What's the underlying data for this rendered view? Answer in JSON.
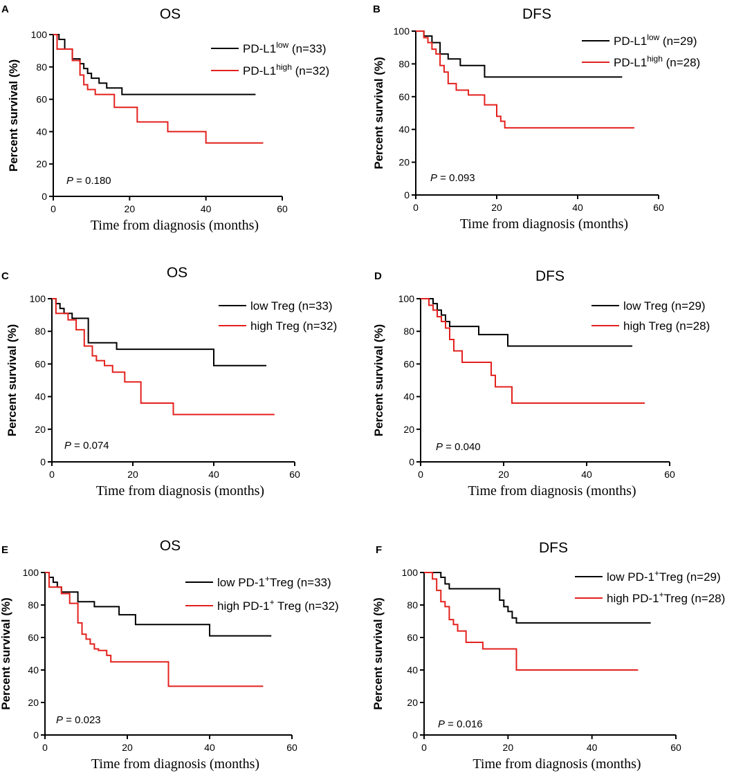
{
  "chart_data": [
    {
      "panel": "A",
      "type": "line",
      "title": "OS",
      "xlabel": "Time from diagnosis (months)",
      "ylabel": "Percent survival (%)",
      "xlim": [
        0,
        60
      ],
      "ylim": [
        0,
        100
      ],
      "xticks": [
        "0",
        "20",
        "40",
        "60"
      ],
      "yticks": [
        "0",
        "20",
        "40",
        "60",
        "80",
        "100"
      ],
      "p_label": "P",
      "p_value": "= 0.180",
      "series": [
        {
          "name": "PD-L1",
          "superscript": "low",
          "n_label": "(n=33)",
          "color": "#000000",
          "x": [
            0,
            1.5,
            3,
            5,
            7,
            8,
            9,
            10,
            12,
            14,
            18,
            53
          ],
          "y": [
            100,
            97,
            91,
            85,
            82,
            79,
            76,
            73,
            70,
            67,
            63,
            63
          ]
        },
        {
          "name": "PD-L1",
          "superscript": "high",
          "n_label": "(n=32)",
          "color": "#e3201c",
          "x": [
            0,
            1,
            3,
            5,
            7,
            8,
            9,
            11,
            13,
            16,
            22,
            30,
            40,
            55
          ],
          "y": [
            100,
            91,
            91,
            84,
            75,
            69,
            66,
            63,
            63,
            55,
            46,
            40,
            33,
            33
          ]
        }
      ]
    },
    {
      "panel": "B",
      "type": "line",
      "title": "DFS",
      "xlabel": "Time from diagnosis (months)",
      "ylabel": "Percent survival (%)",
      "xlim": [
        0,
        60
      ],
      "ylim": [
        0,
        100
      ],
      "xticks": [
        "0",
        "20",
        "40",
        "60"
      ],
      "yticks": [
        "0",
        "20",
        "40",
        "60",
        "80",
        "100"
      ],
      "p_label": "P",
      "p_value": "= 0.093",
      "series": [
        {
          "name": "PD-L1",
          "superscript": "low",
          "n_label": "(n=29)",
          "color": "#000000",
          "x": [
            0,
            2,
            4,
            6,
            8,
            11,
            17,
            51
          ],
          "y": [
            100,
            97,
            93,
            86,
            83,
            79,
            72,
            72
          ]
        },
        {
          "name": "PD-L1",
          "superscript": "high",
          "n_label": "(n=28)",
          "color": "#e3201c",
          "x": [
            0,
            2,
            3,
            4,
            5,
            6,
            7,
            8,
            10,
            13,
            17,
            20,
            21,
            22,
            54
          ],
          "y": [
            100,
            96,
            93,
            89,
            86,
            79,
            75,
            68,
            64,
            61,
            55,
            48,
            45,
            41,
            41
          ]
        }
      ]
    },
    {
      "panel": "C",
      "type": "line",
      "title": "OS",
      "xlabel": "Time from diagnosis (months)",
      "ylabel": "Percent survival (%)",
      "xlim": [
        0,
        60
      ],
      "ylim": [
        0,
        100
      ],
      "xticks": [
        "0",
        "20",
        "40",
        "60"
      ],
      "yticks": [
        "0",
        "20",
        "40",
        "60",
        "80",
        "100"
      ],
      "p_label": "P",
      "p_value": "= 0.074",
      "series": [
        {
          "name": "low Treg",
          "superscript": "",
          "n_label": "(n=33)",
          "color": "#000000",
          "x": [
            0,
            1,
            2,
            3,
            5,
            9,
            16,
            40,
            53
          ],
          "y": [
            100,
            97,
            94,
            91,
            88,
            73,
            69,
            59,
            59
          ]
        },
        {
          "name": "high Treg",
          "superscript": "",
          "n_label": "(n=32)",
          "color": "#e3201c",
          "x": [
            0,
            1,
            4,
            6,
            8,
            10,
            11,
            13,
            15,
            18,
            22,
            30,
            55
          ],
          "y": [
            100,
            91,
            87,
            81,
            71,
            65,
            62,
            59,
            55,
            49,
            36,
            29,
            29
          ]
        }
      ]
    },
    {
      "panel": "D",
      "type": "line",
      "title": "DFS",
      "xlabel": "Time from diagnosis (months)",
      "ylabel": "Percent survival (%)",
      "xlim": [
        0,
        60
      ],
      "ylim": [
        0,
        100
      ],
      "xticks": [
        "0",
        "20",
        "40",
        "60"
      ],
      "yticks": [
        "0",
        "20",
        "40",
        "60",
        "80",
        "100"
      ],
      "p_label": "P",
      "p_value": "= 0.040",
      "series": [
        {
          "name": "low Treg",
          "superscript": "",
          "n_label": "(n=29)",
          "color": "#000000",
          "x": [
            0,
            3,
            4,
            5,
            6,
            7,
            8,
            14,
            21,
            51
          ],
          "y": [
            100,
            97,
            93,
            90,
            86,
            83,
            83,
            78,
            71,
            71
          ]
        },
        {
          "name": "high Treg",
          "superscript": "",
          "n_label": "(n=28)",
          "color": "#e3201c",
          "x": [
            0,
            2,
            3,
            4,
            5,
            6,
            7,
            8,
            10,
            17,
            18,
            20,
            22,
            54
          ],
          "y": [
            100,
            96,
            93,
            89,
            86,
            82,
            75,
            68,
            61,
            53,
            46,
            46,
            36,
            36
          ]
        }
      ]
    },
    {
      "panel": "E",
      "type": "line",
      "title": "OS",
      "xlabel": "Time from diagnosis (months)",
      "ylabel": "Percent survival (%)",
      "xlim": [
        0,
        60
      ],
      "ylim": [
        0,
        100
      ],
      "xticks": [
        "0",
        "20",
        "40",
        "60"
      ],
      "yticks": [
        "0",
        "20",
        "40",
        "60",
        "80",
        "100"
      ],
      "p_label": "P",
      "p_value": "= 0.023",
      "series": [
        {
          "name": "low PD-1",
          "superscript": "+",
          "suffix": "Treg",
          "n_label": "(n=33)",
          "color": "#000000",
          "x": [
            0,
            1,
            2,
            3,
            4,
            8,
            12,
            18,
            22,
            40,
            55
          ],
          "y": [
            100,
            97,
            94,
            91,
            88,
            82,
            79,
            74,
            68,
            61,
            61
          ]
        },
        {
          "name": "high PD-1",
          "superscript": "+",
          "suffix": " Treg",
          "n_label": "(n=32)",
          "color": "#e3201c",
          "x": [
            0,
            1,
            4,
            6,
            8,
            9,
            10,
            11,
            12,
            13,
            15,
            16,
            30,
            53
          ],
          "y": [
            100,
            91,
            87,
            81,
            69,
            62,
            59,
            56,
            53,
            52,
            49,
            45,
            30,
            30
          ]
        }
      ]
    },
    {
      "panel": "F",
      "type": "line",
      "title": "DFS",
      "xlabel": "Time from diagnosis (months)",
      "ylabel": "Percent survival (%)",
      "xlim": [
        0,
        60
      ],
      "ylim": [
        0,
        100
      ],
      "xticks": [
        "0",
        "20",
        "40",
        "60"
      ],
      "yticks": [
        "0",
        "20",
        "40",
        "60",
        "80",
        "100"
      ],
      "p_label": "P",
      "p_value": "= 0.016",
      "series": [
        {
          "name": "low PD-1",
          "superscript": "+",
          "suffix": "Treg",
          "n_label": "(n=29)",
          "color": "#000000",
          "x": [
            0,
            4,
            5,
            6,
            17,
            18,
            19,
            20,
            21,
            22,
            54
          ],
          "y": [
            100,
            97,
            93,
            90,
            90,
            83,
            79,
            76,
            72,
            69,
            69
          ]
        },
        {
          "name": "high PD-1",
          "superscript": "+",
          "suffix": "Treg",
          "n_label": "(n=28)",
          "color": "#e3201c",
          "x": [
            0,
            2,
            3,
            4,
            5,
            6,
            7,
            8,
            10,
            14,
            22,
            51
          ],
          "y": [
            100,
            96,
            89,
            82,
            79,
            71,
            68,
            64,
            57,
            53,
            40,
            40
          ]
        }
      ]
    }
  ]
}
